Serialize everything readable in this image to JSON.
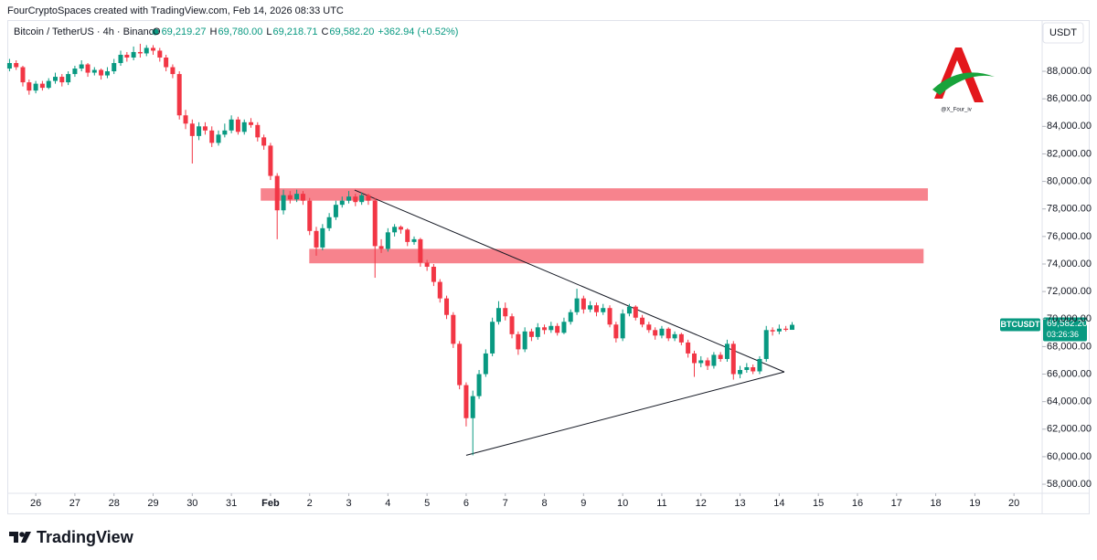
{
  "header": {
    "credit": "FourCryptoSpaces created with TradingView.com, Feb 14, 2026 08:33 UTC",
    "symbol_line": "Bitcoin / TetherUS · 4h · Binance",
    "ohlc_legend": [
      {
        "key": "O",
        "value": "69,219.27"
      },
      {
        "key": "H",
        "value": "69,780.00"
      },
      {
        "key": "L",
        "value": "69,218.71"
      },
      {
        "key": "C",
        "value": "69,582.20"
      }
    ],
    "change": "+362.94 (+0.52%)",
    "currency": "USDT",
    "watermark": "@X_Four_iv",
    "brand": "TradingView"
  },
  "chart_data": {
    "type": "candlestick",
    "up_color": "#089981",
    "down_color": "#f23645",
    "x": [
      25.33,
      25.5,
      25.67,
      25.83,
      26,
      26.17,
      26.33,
      26.5,
      26.67,
      26.83,
      27,
      27.17,
      27.33,
      27.5,
      27.67,
      27.83,
      28,
      28.17,
      28.33,
      28.5,
      28.67,
      28.83,
      29,
      29.17,
      29.33,
      29.5,
      29.67,
      29.83,
      30,
      30.17,
      30.33,
      30.5,
      30.67,
      30.83,
      31,
      31.17,
      31.33,
      31.5,
      31.67,
      31.83,
      32,
      32.17,
      32.33,
      32.5,
      32.67,
      32.83,
      33,
      33.17,
      33.33,
      33.5,
      33.67,
      33.83,
      34,
      34.17,
      34.33,
      34.5,
      34.67,
      34.83,
      35,
      35.17,
      35.33,
      35.5,
      35.67,
      35.83,
      36,
      36.17,
      36.33,
      36.5,
      36.67,
      36.83,
      37,
      37.17,
      37.33,
      37.5,
      37.67,
      37.83,
      38,
      38.17,
      38.33,
      38.5,
      38.67,
      38.83,
      39,
      39.17,
      39.33,
      39.5,
      39.67,
      39.83,
      40,
      40.17,
      40.33,
      40.5,
      40.67,
      40.83,
      41,
      41.17,
      41.33,
      41.5,
      41.67,
      41.83,
      42,
      42.17,
      42.33,
      42.5,
      42.67,
      42.83,
      43,
      43.17,
      43.33,
      43.5,
      43.67,
      43.83,
      44,
      44.17,
      44.33,
      44.5,
      44.67,
      44.83,
      45,
      45.17,
      45.33
    ],
    "ohlc": [
      [
        88200,
        88900,
        88000,
        88600
      ],
      [
        88600,
        88800,
        88100,
        88300
      ],
      [
        88300,
        88400,
        86900,
        87200
      ],
      [
        87200,
        87400,
        86300,
        86600
      ],
      [
        86600,
        87300,
        86400,
        87100
      ],
      [
        87100,
        87300,
        86600,
        86800
      ],
      [
        86800,
        87500,
        86700,
        87300
      ],
      [
        87300,
        87900,
        87100,
        87600
      ],
      [
        87600,
        87800,
        86900,
        87200
      ],
      [
        87200,
        88000,
        87000,
        87800
      ],
      [
        87800,
        88400,
        87600,
        88200
      ],
      [
        88200,
        88800,
        88000,
        88500
      ],
      [
        88500,
        88600,
        87600,
        87900
      ],
      [
        87900,
        88300,
        87700,
        88100
      ],
      [
        88100,
        88200,
        87400,
        87700
      ],
      [
        87700,
        88300,
        87500,
        88000
      ],
      [
        88000,
        88900,
        87800,
        88600
      ],
      [
        88600,
        89500,
        88400,
        89200
      ],
      [
        89200,
        89400,
        88700,
        89000
      ],
      [
        89000,
        89800,
        88800,
        89400
      ],
      [
        89400,
        90000,
        89000,
        89300
      ],
      [
        89300,
        89900,
        89100,
        89700
      ],
      [
        89700,
        89900,
        89200,
        89500
      ],
      [
        89500,
        89700,
        88700,
        89000
      ],
      [
        89000,
        89200,
        88000,
        88300
      ],
      [
        88300,
        88500,
        87500,
        87800
      ],
      [
        87800,
        88000,
        84500,
        84800
      ],
      [
        84800,
        85200,
        83800,
        84200
      ],
      [
        84200,
        84500,
        81300,
        83300
      ],
      [
        83300,
        84300,
        83000,
        84000
      ],
      [
        84000,
        84300,
        83400,
        83700
      ],
      [
        83700,
        84000,
        82500,
        82800
      ],
      [
        82800,
        83700,
        82600,
        83400
      ],
      [
        83400,
        84200,
        83200,
        83700
      ],
      [
        83700,
        84800,
        83500,
        84500
      ],
      [
        84500,
        84700,
        83400,
        83600
      ],
      [
        83600,
        84500,
        83400,
        84300
      ],
      [
        84300,
        84600,
        83900,
        84100
      ],
      [
        84100,
        84300,
        82900,
        83200
      ],
      [
        83200,
        83400,
        82300,
        82600
      ],
      [
        82600,
        82800,
        80100,
        80400
      ],
      [
        80400,
        80600,
        75800,
        77900
      ],
      [
        77900,
        79400,
        77600,
        79000
      ],
      [
        79000,
        79300,
        78400,
        78700
      ],
      [
        78700,
        79400,
        78500,
        79100
      ],
      [
        79100,
        79300,
        78300,
        78600
      ],
      [
        78600,
        78800,
        76100,
        76400
      ],
      [
        76400,
        76700,
        74600,
        75200
      ],
      [
        75200,
        76900,
        75000,
        76600
      ],
      [
        76600,
        77700,
        76400,
        77400
      ],
      [
        77400,
        78600,
        77200,
        78300
      ],
      [
        78300,
        78900,
        78100,
        78600
      ],
      [
        78600,
        79300,
        78400,
        78900
      ],
      [
        78900,
        79100,
        78200,
        78500
      ],
      [
        78500,
        79200,
        78300,
        79000
      ],
      [
        79000,
        79100,
        78300,
        78600
      ],
      [
        78600,
        78800,
        73000,
        75300
      ],
      [
        75300,
        75800,
        74800,
        75100
      ],
      [
        75100,
        76600,
        74900,
        76300
      ],
      [
        76300,
        76900,
        76000,
        76700
      ],
      [
        76700,
        76800,
        76200,
        76500
      ],
      [
        76500,
        76600,
        75300,
        75600
      ],
      [
        75600,
        76000,
        75400,
        75800
      ],
      [
        75800,
        75900,
        73800,
        74100
      ],
      [
        74100,
        74300,
        73500,
        73800
      ],
      [
        73800,
        74000,
        72400,
        72700
      ],
      [
        72700,
        72900,
        71200,
        71500
      ],
      [
        71500,
        71700,
        70000,
        70300
      ],
      [
        70300,
        70500,
        67900,
        68200
      ],
      [
        68200,
        68400,
        64900,
        65200
      ],
      [
        65200,
        65400,
        62200,
        62800
      ],
      [
        62800,
        64800,
        60100,
        64400
      ],
      [
        64400,
        66300,
        64200,
        66000
      ],
      [
        66000,
        67800,
        65800,
        67500
      ],
      [
        67500,
        70100,
        67300,
        69800
      ],
      [
        69800,
        71300,
        69600,
        70800
      ],
      [
        70800,
        71200,
        69900,
        70200
      ],
      [
        70200,
        70400,
        68600,
        68900
      ],
      [
        68900,
        69100,
        67400,
        67800
      ],
      [
        67800,
        69400,
        67600,
        69100
      ],
      [
        69100,
        69300,
        68400,
        68700
      ],
      [
        68700,
        69700,
        68500,
        69400
      ],
      [
        69400,
        69600,
        68900,
        69200
      ],
      [
        69200,
        69800,
        69000,
        69500
      ],
      [
        69500,
        69700,
        68800,
        69000
      ],
      [
        69000,
        70100,
        68900,
        69800
      ],
      [
        69800,
        70700,
        69600,
        70500
      ],
      [
        70500,
        72200,
        70300,
        71500
      ],
      [
        71500,
        71700,
        70400,
        70700
      ],
      [
        70700,
        71300,
        70500,
        71000
      ],
      [
        71000,
        71200,
        70200,
        70500
      ],
      [
        70500,
        71100,
        70300,
        70800
      ],
      [
        70800,
        71000,
        69400,
        69600
      ],
      [
        69600,
        69800,
        68300,
        68600
      ],
      [
        68600,
        70700,
        68400,
        70400
      ],
      [
        70400,
        71100,
        70200,
        70900
      ],
      [
        70900,
        71000,
        69900,
        70100
      ],
      [
        70100,
        70300,
        69400,
        69600
      ],
      [
        69600,
        69800,
        69000,
        69200
      ],
      [
        69200,
        69400,
        68500,
        68800
      ],
      [
        68800,
        69500,
        68600,
        69300
      ],
      [
        69300,
        69400,
        68400,
        68600
      ],
      [
        68600,
        69100,
        68400,
        68900
      ],
      [
        68900,
        69000,
        68100,
        68300
      ],
      [
        68300,
        68500,
        67200,
        67500
      ],
      [
        67500,
        67700,
        65800,
        66800
      ],
      [
        66800,
        67300,
        66500,
        67000
      ],
      [
        67000,
        67200,
        66300,
        66600
      ],
      [
        66600,
        67600,
        66400,
        67400
      ],
      [
        67400,
        67600,
        66900,
        67100
      ],
      [
        67100,
        68500,
        66900,
        68200
      ],
      [
        68200,
        68400,
        65600,
        66000
      ],
      [
        66000,
        66600,
        65700,
        66300
      ],
      [
        66300,
        66800,
        66100,
        66500
      ],
      [
        66500,
        66700,
        66000,
        66200
      ],
      [
        66200,
        67300,
        66000,
        67100
      ],
      [
        67100,
        69500,
        66900,
        69200
      ],
      [
        69200,
        69400,
        68800,
        69100
      ],
      [
        69100,
        69600,
        68900,
        69300
      ],
      [
        69300,
        69500,
        69100,
        69219.27
      ],
      [
        69219.27,
        69780,
        69218.71,
        69582.2
      ]
    ],
    "zones": [
      {
        "x": [
          31.75,
          48.8
        ],
        "y": [
          78600,
          79500
        ],
        "color": "#f7838d"
      },
      {
        "x": [
          32.99,
          48.69
        ],
        "y": [
          74050,
          75100
        ],
        "color": "#f7838d"
      }
    ],
    "trendlines": [
      {
        "x": [
          34.15,
          45.13
        ],
        "y": [
          79370,
          66160
        ]
      },
      {
        "x": [
          37.0,
          45.13
        ],
        "y": [
          60100,
          66160
        ]
      }
    ],
    "xlim": [
      25.32,
      51.72
    ],
    "xticks": [
      26,
      27,
      28,
      29,
      30,
      31,
      {
        "value": 32,
        "label": "Feb"
      },
      {
        "value": 33,
        "label": "2"
      },
      {
        "value": 34,
        "label": "3"
      },
      {
        "value": 35,
        "label": "4"
      },
      {
        "value": 36,
        "label": "5"
      },
      {
        "value": 37,
        "label": "6"
      },
      {
        "value": 38,
        "label": "7"
      },
      {
        "value": 39,
        "label": "8"
      },
      {
        "value": 40,
        "label": "9"
      },
      {
        "value": 41,
        "label": "10"
      },
      {
        "value": 42,
        "label": "11"
      },
      {
        "value": 43,
        "label": "12"
      },
      {
        "value": 44,
        "label": "13"
      },
      {
        "value": 45,
        "label": "14"
      },
      {
        "value": 46,
        "label": "15"
      },
      {
        "value": 47,
        "label": "16"
      },
      {
        "value": 48,
        "label": "17"
      },
      {
        "value": 49,
        "label": "18"
      },
      {
        "value": 50,
        "label": "19"
      },
      {
        "value": 51,
        "label": "20"
      }
    ],
    "ylim": [
      57340,
      91720
    ],
    "yticks": [
      {
        "value": 58000,
        "label": "58,000.00"
      },
      {
        "value": 60000,
        "label": "60,000.00"
      },
      {
        "value": 62000,
        "label": "62,000.00"
      },
      {
        "value": 64000,
        "label": "64,000.00"
      },
      {
        "value": 66000,
        "label": "66,000.00"
      },
      {
        "value": 68000,
        "label": "68,000.00"
      },
      {
        "value": 70000,
        "label": "70,000.00"
      },
      {
        "value": 72000,
        "label": "72,000.00"
      },
      {
        "value": 74000,
        "label": "74,000.00"
      },
      {
        "value": 76000,
        "label": "76,000.00"
      },
      {
        "value": 78000,
        "label": "78,000.00"
      },
      {
        "value": 80000,
        "label": "80,000.00"
      },
      {
        "value": 82000,
        "label": "82,000.00"
      },
      {
        "value": 84000,
        "label": "84,000.00"
      },
      {
        "value": 86000,
        "label": "86,000.00"
      },
      {
        "value": 88000,
        "label": "88,000.00"
      }
    ],
    "price_tag": {
      "symbol": "BTCUSDT",
      "price": "69,582.20",
      "countdown": "03:26:36"
    }
  }
}
